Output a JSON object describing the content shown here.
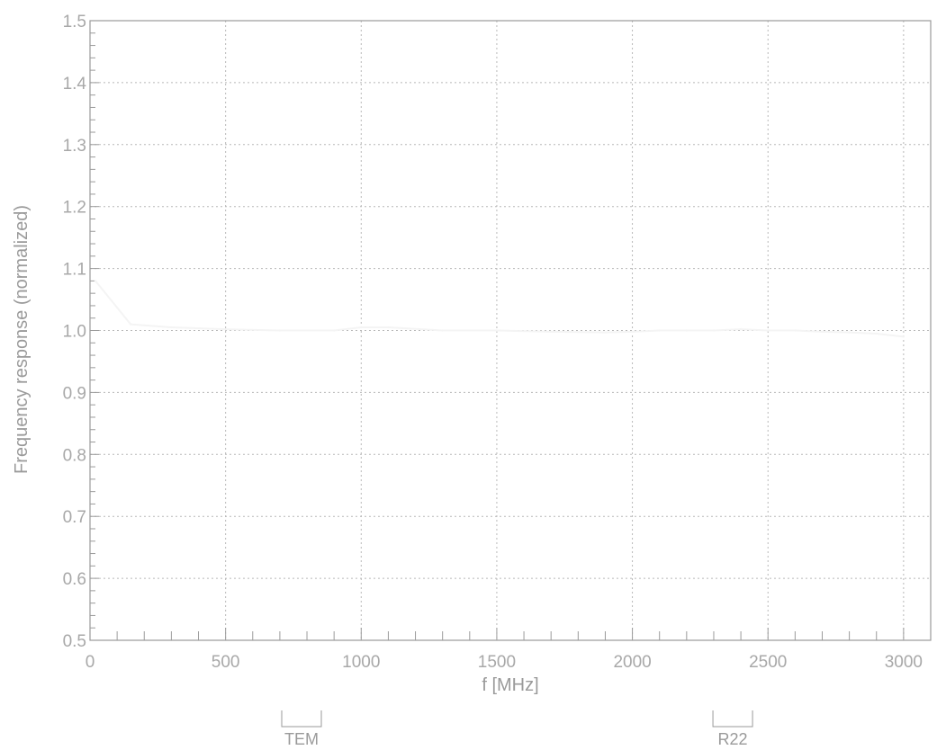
{
  "chart_data": {
    "type": "line",
    "title": "",
    "xlabel": "f [MHz]",
    "ylabel": "Frequency response (normalized)",
    "xlim": [
      0,
      3100
    ],
    "ylim": [
      0.5,
      1.5
    ],
    "x_ticks": [
      0,
      500,
      1000,
      1500,
      2000,
      2500,
      3000
    ],
    "x_tick_labels": [
      "0",
      "500",
      "1000",
      "1500",
      "2000",
      "2500",
      "3000"
    ],
    "y_ticks": [
      0.5,
      0.6,
      0.7,
      0.8,
      0.9,
      1.0,
      1.1,
      1.2,
      1.3,
      1.4,
      1.5
    ],
    "y_tick_labels": [
      "0.5",
      "0.6",
      "0.7",
      "0.8",
      "0.9",
      "1.0",
      "1.1",
      "1.2",
      "1.3",
      "1.4",
      "1.5"
    ],
    "grid": true,
    "series": [
      {
        "x": [
          20,
          150,
          300,
          500,
          700,
          900,
          1000,
          1100,
          1300,
          1500,
          1700,
          1900,
          2000,
          2100,
          2200,
          2300,
          2400,
          2500,
          2600,
          2700,
          2800,
          2900,
          3000
        ],
        "values": [
          1.08,
          1.01,
          1.005,
          1.002,
          1.0,
          1.0,
          1.005,
          1.005,
          1.0,
          1.0,
          0.998,
          0.997,
          0.998,
          1.0,
          1.0,
          1.0,
          1.002,
          1.0,
          1.0,
          0.998,
          0.997,
          0.995,
          0.99
        ],
        "color": "#f4f4f4"
      }
    ],
    "markers": [
      {
        "label": "TEM",
        "x": 780
      },
      {
        "label": "R22",
        "x": 2370
      }
    ]
  },
  "colors": {
    "axis": "#9a9a9a",
    "grid": "#b8b8b8",
    "text": "#a8a8a8"
  }
}
